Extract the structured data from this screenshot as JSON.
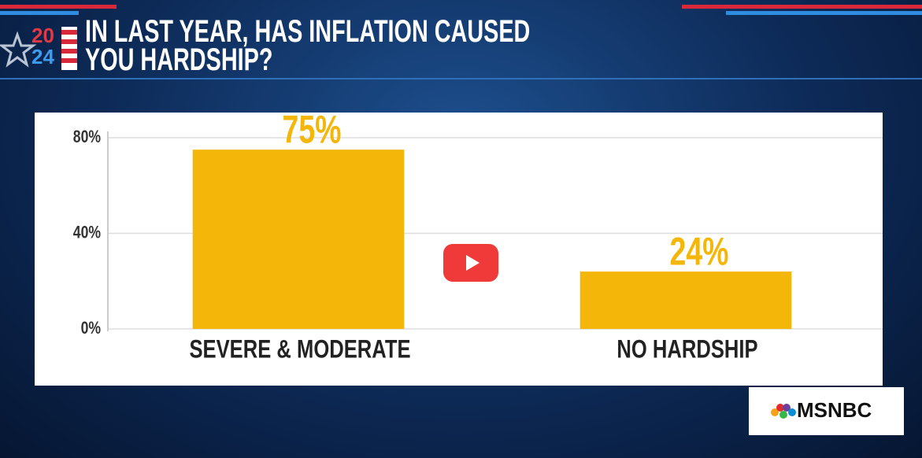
{
  "chart_data": {
    "type": "bar",
    "title": "IN LAST YEAR, HAS INFLATION CAUSED YOU HARDSHIP?",
    "categories": [
      "SEVERE & MODERATE",
      "NO HARDSHIP"
    ],
    "values": [
      75,
      24
    ],
    "value_labels": [
      "75%",
      "24%"
    ],
    "color": "#f5b60a",
    "ylim": [
      0,
      80
    ],
    "yticks": [
      {
        "value": 0,
        "label": "0%"
      },
      {
        "value": 40,
        "label": "40%"
      },
      {
        "value": 80,
        "label": "80%"
      }
    ],
    "grid": true
  },
  "branding": {
    "year_top": "20",
    "year_bottom": "24",
    "network": "MSNBC"
  }
}
